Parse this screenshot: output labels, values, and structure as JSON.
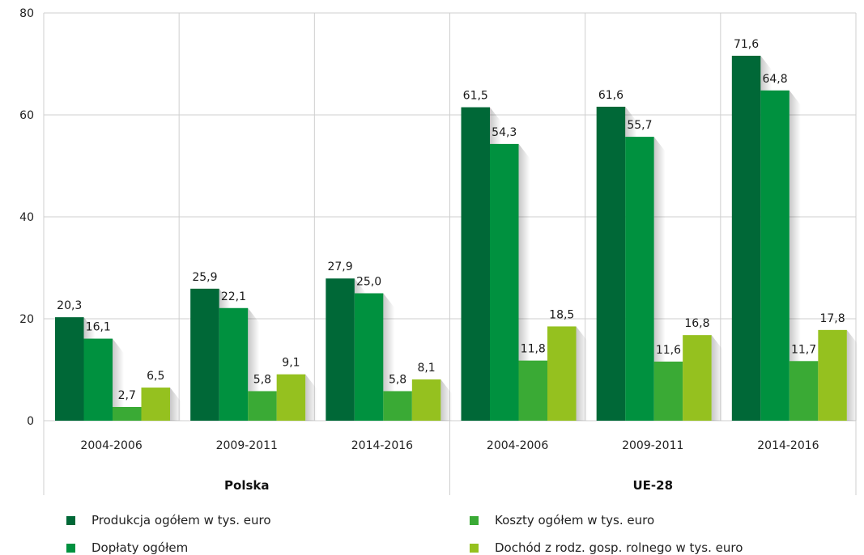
{
  "chart_data": {
    "type": "bar",
    "ylim": [
      0,
      80
    ],
    "yticks": [
      "0",
      "20",
      "40",
      "60",
      "80"
    ],
    "groups": [
      {
        "label": "Polska",
        "categories": [
          "2004-2006",
          "2009-2011",
          "2014-2016"
        ]
      },
      {
        "label": "UE-28",
        "categories": [
          "2004-2006",
          "2009-2011",
          "2014-2016"
        ]
      }
    ],
    "series": [
      {
        "name": "Produkcja ogółem w tys. euro",
        "color": "#006837",
        "values": [
          20.3,
          25.9,
          27.9,
          61.5,
          61.6,
          71.6
        ],
        "labels": [
          "20,3",
          "25,9",
          "27,9",
          "61,5",
          "61,6",
          "71,6"
        ]
      },
      {
        "name": "Dopłaty ogółem",
        "color": "#00913f",
        "values": [
          16.1,
          22.1,
          25.0,
          54.3,
          55.7,
          64.8
        ],
        "labels": [
          "16,1",
          "22,1",
          "25,0",
          "54,3",
          "55,7",
          "64,8"
        ]
      },
      {
        "name": "Koszty ogółem w tys. euro",
        "color": "#3aaa35",
        "values": [
          2.7,
          5.8,
          5.8,
          11.8,
          11.6,
          11.7
        ],
        "labels": [
          "2,7",
          "5,8",
          "5,8",
          "11,8",
          "11,6",
          "11,7"
        ]
      },
      {
        "name": "Dochód z rodz. gosp. rolnego w tys. euro",
        "color": "#95c11f",
        "values": [
          6.5,
          9.1,
          8.1,
          18.5,
          16.8,
          17.8
        ],
        "labels": [
          "6,5",
          "9,1",
          "8,1",
          "18,5",
          "16,8",
          "17,8"
        ]
      }
    ],
    "grid": true,
    "legend_position": "bottom"
  }
}
